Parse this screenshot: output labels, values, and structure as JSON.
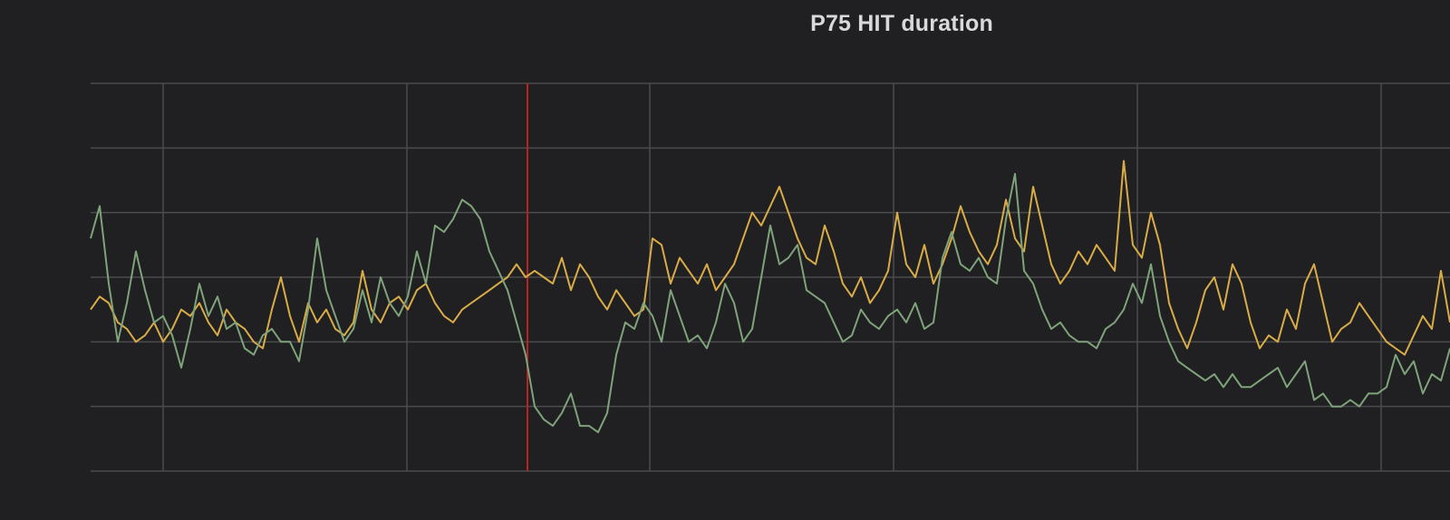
{
  "panel": {
    "title": "P75 HIT duration"
  },
  "colors": {
    "background": "#202022",
    "grid": "#4a4b4e",
    "series_a": "#d9ac47",
    "series_b": "#7fa37a",
    "marker": "#b8231f"
  },
  "chart_data": {
    "type": "line",
    "title": "P75 HIT duration",
    "xlabel": "",
    "ylabel": "",
    "x_ticks": [],
    "y_ticks": [],
    "grid": true,
    "legend": "none",
    "xlim": [
      0,
      1500
    ],
    "ylim": [
      0,
      6
    ],
    "annotations": [
      {
        "type": "vertical-line",
        "x": 482,
        "color": "#b8231f"
      }
    ],
    "series": [
      {
        "color": "#d9ac47",
        "x": [
          0,
          10,
          20,
          30,
          40,
          50,
          60,
          70,
          80,
          90,
          100,
          110,
          120,
          130,
          140,
          150,
          160,
          170,
          180,
          190,
          200,
          210,
          220,
          230,
          240,
          250,
          260,
          270,
          280,
          290,
          300,
          310,
          320,
          330,
          340,
          350,
          360,
          370,
          380,
          390,
          400,
          410,
          420,
          430,
          440,
          450,
          460,
          470,
          480,
          490,
          500,
          510,
          520,
          530,
          540,
          550,
          560,
          570,
          580,
          590,
          600,
          610,
          620,
          630,
          640,
          650,
          660,
          670,
          680,
          690,
          700,
          710,
          720,
          730,
          740,
          750,
          760,
          770,
          780,
          790,
          800,
          810,
          820,
          830,
          840,
          850,
          860,
          870,
          880,
          890,
          900,
          910,
          920,
          930,
          940,
          950,
          960,
          970,
          980,
          990,
          1000,
          1010,
          1020,
          1030,
          1040,
          1050,
          1060,
          1070,
          1080,
          1090,
          1100,
          1110,
          1120,
          1130,
          1140,
          1150,
          1160,
          1170,
          1180,
          1190,
          1200,
          1210,
          1220,
          1230,
          1240,
          1250,
          1260,
          1270,
          1280,
          1290,
          1300,
          1310,
          1320,
          1330,
          1340,
          1350,
          1360,
          1370,
          1380,
          1390,
          1400,
          1410,
          1420,
          1430,
          1440,
          1450,
          1460,
          1470,
          1480,
          1490,
          1500
        ],
        "values": [
          2.5,
          2.7,
          2.6,
          2.3,
          2.2,
          2.0,
          2.1,
          2.3,
          2.0,
          2.2,
          2.5,
          2.4,
          2.6,
          2.3,
          2.1,
          2.5,
          2.3,
          2.2,
          2.0,
          1.9,
          2.5,
          3.0,
          2.4,
          2.0,
          2.6,
          2.3,
          2.5,
          2.2,
          2.1,
          2.3,
          3.1,
          2.5,
          2.3,
          2.6,
          2.7,
          2.5,
          2.8,
          2.9,
          2.6,
          2.4,
          2.3,
          2.5,
          2.6,
          2.7,
          2.8,
          2.9,
          3.0,
          3.2,
          3.0,
          3.1,
          3.0,
          2.9,
          3.3,
          2.8,
          3.2,
          3.0,
          2.7,
          2.5,
          2.8,
          2.6,
          2.4,
          2.5,
          3.6,
          3.5,
          2.9,
          3.3,
          3.1,
          2.9,
          3.2,
          2.8,
          3.0,
          3.2,
          3.6,
          4.0,
          3.8,
          4.1,
          4.4,
          4.0,
          3.6,
          3.3,
          3.2,
          3.8,
          3.4,
          2.9,
          2.7,
          3.0,
          2.6,
          2.8,
          3.1,
          4.0,
          3.2,
          3.0,
          3.5,
          2.9,
          3.2,
          3.6,
          4.1,
          3.7,
          3.4,
          3.2,
          3.5,
          4.2,
          3.6,
          3.4,
          4.4,
          3.8,
          3.2,
          2.9,
          3.1,
          3.4,
          3.2,
          3.5,
          3.3,
          3.1,
          4.8,
          3.5,
          3.3,
          4.0,
          3.5,
          2.6,
          2.2,
          1.9,
          2.3,
          2.8,
          3.0,
          2.5,
          3.2,
          2.9,
          2.3,
          1.9,
          2.1,
          2.0,
          2.5,
          2.2,
          2.9,
          3.2,
          2.6,
          2.0,
          2.2,
          2.3,
          2.6,
          2.4,
          2.2,
          2.0,
          1.9,
          1.8,
          2.1,
          2.4,
          2.2,
          3.1,
          2.3
        ]
      },
      {
        "color": "#7fa37a",
        "x": [
          0,
          10,
          20,
          30,
          40,
          50,
          60,
          70,
          80,
          90,
          100,
          110,
          120,
          130,
          140,
          150,
          160,
          170,
          180,
          190,
          200,
          210,
          220,
          230,
          240,
          250,
          260,
          270,
          280,
          290,
          300,
          310,
          320,
          330,
          340,
          350,
          360,
          370,
          380,
          390,
          400,
          410,
          420,
          430,
          440,
          450,
          460,
          470,
          480,
          490,
          500,
          510,
          520,
          530,
          540,
          550,
          560,
          570,
          580,
          590,
          600,
          610,
          620,
          630,
          640,
          650,
          660,
          670,
          680,
          690,
          700,
          710,
          720,
          730,
          740,
          750,
          760,
          770,
          780,
          790,
          800,
          810,
          820,
          830,
          840,
          850,
          860,
          870,
          880,
          890,
          900,
          910,
          920,
          930,
          940,
          950,
          960,
          970,
          980,
          990,
          1000,
          1010,
          1020,
          1030,
          1040,
          1050,
          1060,
          1070,
          1080,
          1090,
          1100,
          1110,
          1120,
          1130,
          1140,
          1150,
          1160,
          1170,
          1180,
          1190,
          1200,
          1210,
          1220,
          1230,
          1240,
          1250,
          1260,
          1270,
          1280,
          1290,
          1300,
          1310,
          1320,
          1330,
          1340,
          1350,
          1360,
          1370,
          1380,
          1390,
          1400,
          1410,
          1420,
          1430,
          1440,
          1450,
          1460,
          1470,
          1480,
          1490,
          1500
        ],
        "values": [
          3.6,
          4.1,
          2.9,
          2.0,
          2.6,
          3.4,
          2.8,
          2.3,
          2.4,
          2.1,
          1.6,
          2.2,
          2.9,
          2.4,
          2.7,
          2.2,
          2.3,
          1.9,
          1.8,
          2.1,
          2.2,
          2.0,
          2.0,
          1.7,
          2.5,
          3.6,
          2.8,
          2.4,
          2.0,
          2.2,
          2.8,
          2.3,
          3.0,
          2.6,
          2.4,
          2.7,
          3.4,
          2.9,
          3.8,
          3.7,
          3.9,
          4.2,
          4.1,
          3.9,
          3.4,
          3.1,
          2.8,
          2.3,
          1.8,
          1.0,
          0.8,
          0.7,
          0.9,
          1.2,
          0.7,
          0.7,
          0.6,
          0.9,
          1.8,
          2.3,
          2.2,
          2.6,
          2.4,
          2.0,
          2.8,
          2.4,
          2.0,
          2.1,
          1.9,
          2.3,
          2.9,
          2.6,
          2.0,
          2.2,
          3.0,
          3.8,
          3.2,
          3.3,
          3.5,
          2.8,
          2.7,
          2.6,
          2.3,
          2.0,
          2.1,
          2.5,
          2.3,
          2.2,
          2.4,
          2.5,
          2.3,
          2.6,
          2.2,
          2.3,
          3.3,
          3.7,
          3.2,
          3.1,
          3.3,
          3.0,
          2.9,
          3.9,
          4.6,
          3.1,
          2.9,
          2.5,
          2.2,
          2.3,
          2.1,
          2.0,
          2.0,
          1.9,
          2.2,
          2.3,
          2.5,
          2.9,
          2.6,
          3.2,
          2.4,
          2.0,
          1.7,
          1.6,
          1.5,
          1.4,
          1.5,
          1.3,
          1.5,
          1.3,
          1.3,
          1.4,
          1.5,
          1.6,
          1.3,
          1.5,
          1.7,
          1.1,
          1.2,
          1.0,
          1.0,
          1.1,
          1.0,
          1.2,
          1.2,
          1.3,
          1.8,
          1.5,
          1.7,
          1.2,
          1.5,
          1.4,
          1.9
        ]
      }
    ]
  }
}
